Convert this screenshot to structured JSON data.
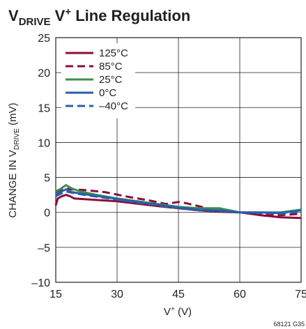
{
  "chart_data": {
    "type": "line",
    "title": {
      "parts": [
        {
          "text": "V",
          "style": "normal"
        },
        {
          "text": "DRIVE",
          "style": "sub"
        },
        {
          "text": " V",
          "style": "normal"
        },
        {
          "text": "+",
          "style": "sup"
        },
        {
          "text": " Line Regulation",
          "style": "normal"
        }
      ]
    },
    "xlabel": {
      "parts": [
        {
          "text": "V",
          "style": "normal"
        },
        {
          "text": "+",
          "style": "sup"
        },
        {
          "text": " (V)",
          "style": "normal"
        }
      ]
    },
    "ylabel": {
      "parts": [
        {
          "text": "CHANGE IN V",
          "style": "normal"
        },
        {
          "text": "DRIVE",
          "style": "sub"
        },
        {
          "text": " (mV)",
          "style": "normal"
        }
      ]
    },
    "xlim": [
      15,
      75
    ],
    "ylim": [
      -10,
      25
    ],
    "xticks": [
      15,
      30,
      45,
      60,
      75
    ],
    "yticks": [
      -10,
      -5,
      0,
      5,
      10,
      15,
      20,
      25
    ],
    "ytick_labels": [
      "–10",
      "–5",
      "0",
      "5",
      "10",
      "15",
      "20",
      "25"
    ],
    "grid": true,
    "legend_position": "top-left",
    "note": "68121 G35",
    "series": [
      {
        "name": "125°C",
        "color": "#8b0d3a",
        "dash": "solid",
        "points": [
          [
            15,
            1.0
          ],
          [
            15.5,
            2.0
          ],
          [
            16.5,
            2.3
          ],
          [
            17.5,
            2.5
          ],
          [
            18.5,
            2.3
          ],
          [
            19.5,
            2.0
          ],
          [
            22,
            1.9
          ],
          [
            30,
            1.6
          ],
          [
            40,
            0.9
          ],
          [
            45,
            0.6
          ],
          [
            50,
            0.3
          ],
          [
            55,
            0.1
          ],
          [
            60,
            0.0
          ],
          [
            65,
            -0.4
          ],
          [
            70,
            -0.7
          ],
          [
            75,
            -0.8
          ]
        ]
      },
      {
        "name": "85°C",
        "color": "#8b0d3a",
        "dash": "dashed",
        "points": [
          [
            15,
            2.9
          ],
          [
            16,
            3.2
          ],
          [
            17.5,
            3.4
          ],
          [
            19,
            3.3
          ],
          [
            22,
            3.2
          ],
          [
            27,
            2.9
          ],
          [
            33,
            2.2
          ],
          [
            38,
            1.7
          ],
          [
            42,
            1.2
          ],
          [
            45,
            1.5
          ],
          [
            47,
            1.3
          ],
          [
            52,
            0.6
          ],
          [
            56,
            0.3
          ],
          [
            60,
            0.0
          ],
          [
            65,
            -0.2
          ],
          [
            70,
            -0.4
          ],
          [
            75,
            -0.2
          ]
        ]
      },
      {
        "name": "25°C",
        "color": "#3f8f4f",
        "dash": "solid",
        "points": [
          [
            15,
            3.0
          ],
          [
            16,
            3.3
          ],
          [
            17.5,
            3.9
          ],
          [
            19,
            3.4
          ],
          [
            21,
            3.0
          ],
          [
            25,
            2.5
          ],
          [
            30,
            2.0
          ],
          [
            35,
            1.6
          ],
          [
            40,
            1.2
          ],
          [
            45,
            0.8
          ],
          [
            50,
            0.6
          ],
          [
            55,
            0.6
          ],
          [
            60,
            0.0
          ],
          [
            65,
            0.0
          ],
          [
            70,
            0.0
          ],
          [
            75,
            0.4
          ]
        ]
      },
      {
        "name": "0°C",
        "color": "#2a5faa",
        "dash": "solid",
        "points": [
          [
            15,
            2.5
          ],
          [
            16,
            2.9
          ],
          [
            17.5,
            3.3
          ],
          [
            19,
            2.9
          ],
          [
            22,
            2.6
          ],
          [
            28,
            2.1
          ],
          [
            35,
            1.5
          ],
          [
            40,
            1.1
          ],
          [
            45,
            0.7
          ],
          [
            50,
            0.4
          ],
          [
            55,
            0.3
          ],
          [
            60,
            0.0
          ],
          [
            65,
            0.0
          ],
          [
            70,
            -0.1
          ],
          [
            75,
            0.3
          ]
        ]
      },
      {
        "name": "–40°C",
        "color": "#2a5faa",
        "dash": "dashed",
        "points": [
          [
            15,
            2.3
          ],
          [
            16,
            2.6
          ],
          [
            17.5,
            3.0
          ],
          [
            19,
            2.8
          ],
          [
            22,
            2.5
          ],
          [
            28,
            2.0
          ],
          [
            35,
            1.4
          ],
          [
            40,
            1.0
          ],
          [
            45,
            0.6
          ],
          [
            50,
            0.3
          ],
          [
            55,
            0.2
          ],
          [
            60,
            0.0
          ],
          [
            65,
            -0.1
          ],
          [
            70,
            -0.2
          ],
          [
            75,
            0.1
          ]
        ]
      }
    ]
  }
}
